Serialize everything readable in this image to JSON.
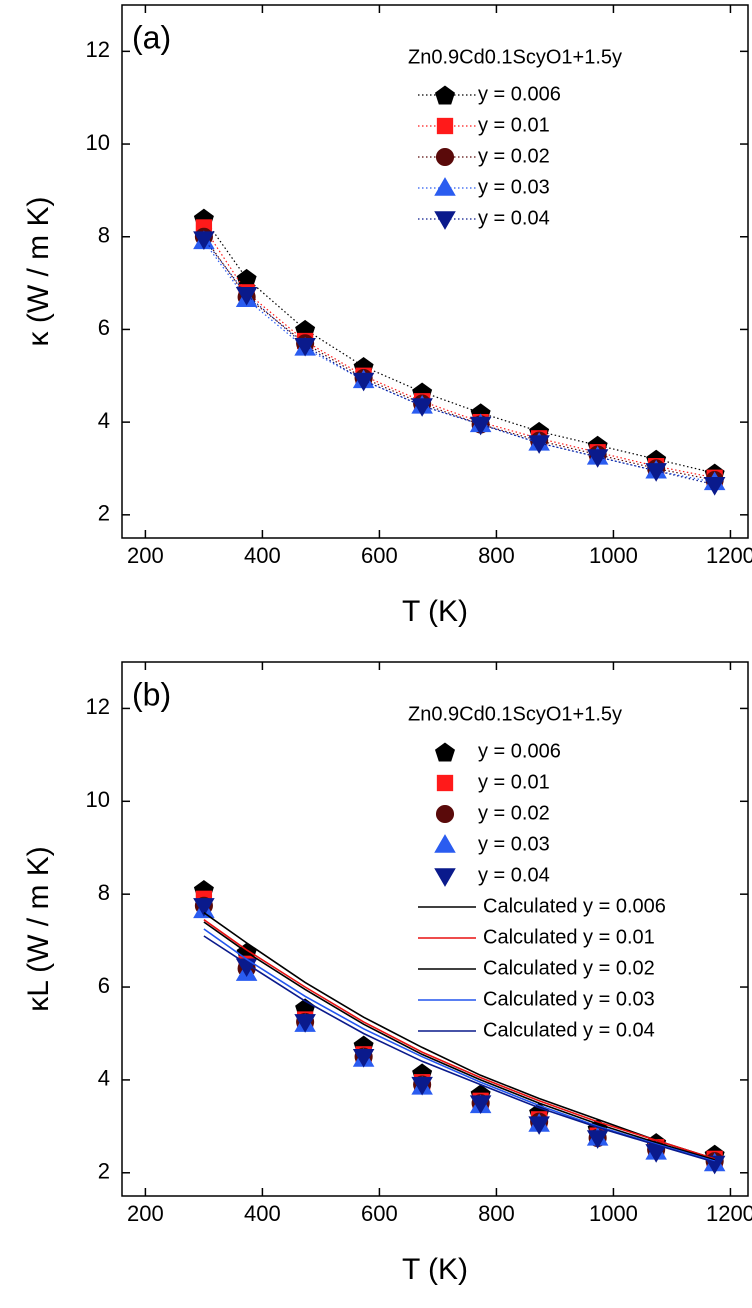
{
  "chart_data": [
    {
      "type": "line",
      "panel_label": "(a)",
      "x_label": "T (K)",
      "y_label": "κ (W / m K)",
      "legend_title": "Zn0.9Cd0.1ScyO1+1.5y",
      "legend": "upper right",
      "xlim": [
        160,
        1230
      ],
      "xticks": [
        200,
        400,
        600,
        800,
        1000,
        1200
      ],
      "ylim": [
        1.5,
        13
      ],
      "yticks": [
        2,
        4,
        6,
        8,
        10,
        12
      ],
      "x": [
        300,
        373,
        473,
        573,
        673,
        773,
        873,
        973,
        1073,
        1173
      ],
      "series": [
        {
          "name": "y = 0.006",
          "color": "#000000",
          "marker": "pentagon",
          "line": "dotted",
          "values": [
            8.4,
            7.1,
            6.0,
            5.2,
            4.65,
            4.2,
            3.8,
            3.5,
            3.2,
            2.9
          ]
        },
        {
          "name": "y = 0.01",
          "color": "#ff1a1a",
          "marker": "square",
          "line": "dotted",
          "values": [
            8.2,
            6.8,
            5.75,
            5.0,
            4.45,
            4.0,
            3.65,
            3.35,
            3.05,
            2.8
          ]
        },
        {
          "name": "y = 0.02",
          "color": "#5a0a0a",
          "marker": "circle",
          "line": "dotted",
          "values": [
            8.0,
            6.7,
            5.7,
            4.95,
            4.4,
            3.95,
            3.6,
            3.3,
            3.0,
            2.75
          ]
        },
        {
          "name": "y = 0.03",
          "color": "#2a5cf0",
          "marker": "triangle-up",
          "line": "dotted",
          "values": [
            7.9,
            6.65,
            5.6,
            4.9,
            4.35,
            3.95,
            3.55,
            3.25,
            2.95,
            2.7
          ]
        },
        {
          "name": "y = 0.04",
          "color": "#0a1a8c",
          "marker": "triangle-down",
          "line": "dotted",
          "values": [
            7.95,
            6.75,
            5.65,
            4.9,
            4.35,
            3.95,
            3.55,
            3.25,
            2.95,
            2.65
          ]
        }
      ]
    },
    {
      "type": "line",
      "panel_label": "(b)",
      "x_label": "T (K)",
      "y_label": "κL (W / m K)",
      "legend_title": "Zn0.9Cd0.1ScyO1+1.5y",
      "legend": "upper right",
      "xlim": [
        160,
        1230
      ],
      "xticks": [
        200,
        400,
        600,
        800,
        1000,
        1200
      ],
      "ylim": [
        1.5,
        13
      ],
      "yticks": [
        2,
        4,
        6,
        8,
        10,
        12
      ],
      "x": [
        300,
        373,
        473,
        573,
        673,
        773,
        873,
        973,
        1073,
        1173
      ],
      "series": [
        {
          "name": "y = 0.006",
          "color": "#000000",
          "marker": "pentagon",
          "line": "none",
          "values": [
            8.1,
            6.75,
            5.55,
            4.75,
            4.15,
            3.7,
            3.3,
            2.95,
            2.65,
            2.4
          ]
        },
        {
          "name": "y = 0.01",
          "color": "#ff1a1a",
          "marker": "square",
          "line": "none",
          "values": [
            7.9,
            6.5,
            5.3,
            4.55,
            3.95,
            3.55,
            3.15,
            2.8,
            2.55,
            2.3
          ]
        },
        {
          "name": "y = 0.02",
          "color": "#5a0a0a",
          "marker": "circle",
          "line": "none",
          "values": [
            7.75,
            6.4,
            5.25,
            4.5,
            3.9,
            3.5,
            3.1,
            2.75,
            2.5,
            2.25
          ]
        },
        {
          "name": "y = 0.03",
          "color": "#2a5cf0",
          "marker": "triangle-up",
          "line": "none",
          "values": [
            7.65,
            6.3,
            5.2,
            4.45,
            3.85,
            3.45,
            3.05,
            2.75,
            2.45,
            2.2
          ]
        },
        {
          "name": "y = 0.04",
          "color": "#0a1a8c",
          "marker": "triangle-down",
          "line": "none",
          "values": [
            7.75,
            6.45,
            5.25,
            4.5,
            3.9,
            3.5,
            3.05,
            2.75,
            2.45,
            2.2
          ]
        },
        {
          "name": "Calculated y = 0.006",
          "color": "#000000",
          "marker": "none",
          "line": "solid",
          "values": [
            7.6,
            6.95,
            6.1,
            5.35,
            4.7,
            4.1,
            3.6,
            3.15,
            2.7,
            2.3
          ]
        },
        {
          "name": "Calculated y = 0.01",
          "color": "#e81010",
          "marker": "none",
          "line": "solid",
          "values": [
            7.45,
            6.8,
            6.0,
            5.25,
            4.6,
            4.05,
            3.55,
            3.1,
            2.7,
            2.3
          ]
        },
        {
          "name": "Calculated y = 0.02",
          "color": "#000000",
          "marker": "none",
          "line": "solid",
          "values": [
            7.4,
            6.75,
            5.95,
            5.2,
            4.55,
            4.0,
            3.5,
            3.05,
            2.65,
            2.28
          ]
        },
        {
          "name": "Calculated y = 0.03",
          "color": "#2255ee",
          "marker": "none",
          "line": "solid",
          "values": [
            7.25,
            6.6,
            5.8,
            5.1,
            4.5,
            3.95,
            3.45,
            3.0,
            2.62,
            2.25
          ]
        },
        {
          "name": "Calculated y = 0.04",
          "color": "#0a1a8c",
          "marker": "none",
          "line": "solid",
          "values": [
            7.1,
            6.5,
            5.7,
            5.0,
            4.4,
            3.9,
            3.4,
            2.98,
            2.6,
            2.23
          ]
        }
      ]
    }
  ]
}
